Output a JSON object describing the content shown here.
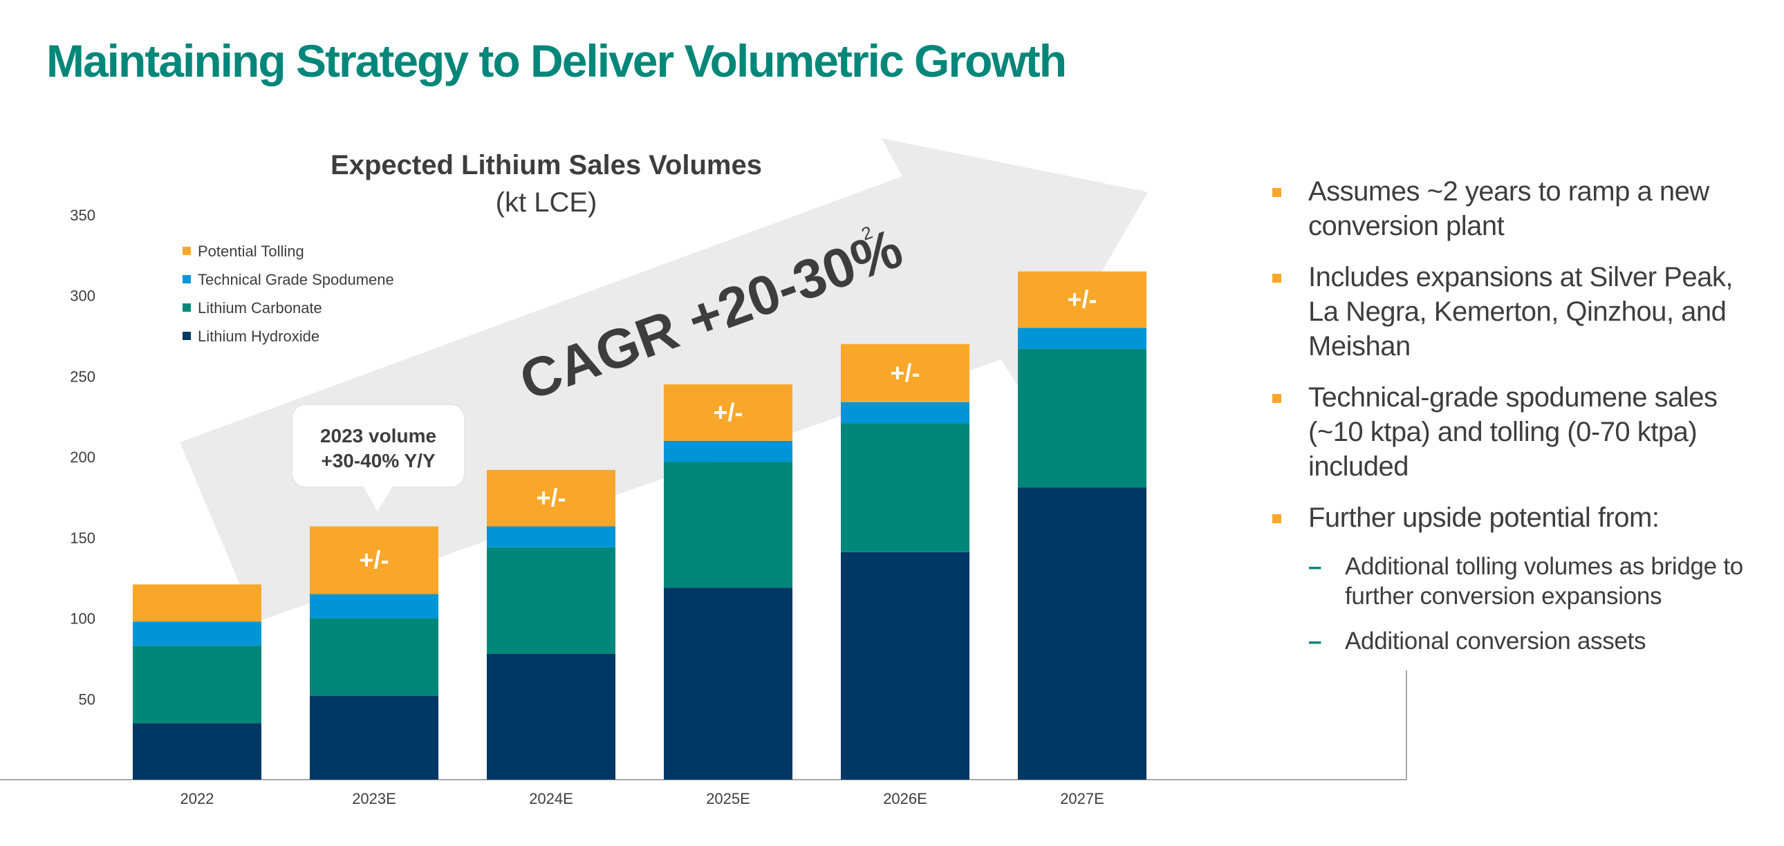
{
  "page": {
    "title": "Maintaining Strategy to Deliver Volumetric Growth"
  },
  "annotations": {
    "callout_line1": "2023 volume",
    "callout_line2": "+30-40% Y/Y",
    "cagr_text": "CAGR +20-30%",
    "cagr_footnote": "2",
    "range_label": "+/-"
  },
  "colors": {
    "title": "#00877a",
    "lithium_hydroxide": "#003764",
    "lithium_carbonate": "#00877a",
    "technical_grade_spodumene": "#0095d6",
    "potential_tolling": "#f9a72b",
    "arrow": "#ebebeb",
    "bullet_marker": "#f9a72b",
    "dash": "#00877a"
  },
  "chart_data": {
    "type": "bar",
    "stacked": true,
    "title": "Expected Lithium Sales Volumes",
    "subtitle": "(kt LCE)",
    "categories": [
      "2022",
      "2023E",
      "2024E",
      "2025E",
      "2026E",
      "2027E"
    ],
    "series": [
      {
        "name": "Lithium Hydroxide",
        "values": [
          35,
          52,
          78,
          119,
          141,
          181
        ]
      },
      {
        "name": "Lithium Carbonate",
        "values": [
          48,
          48,
          66,
          78,
          80,
          86
        ]
      },
      {
        "name": "Technical Grade Spodumene",
        "values": [
          15,
          15,
          13,
          13,
          13,
          13
        ]
      },
      {
        "name": "Potential Tolling",
        "values": [
          23,
          42,
          35,
          35,
          36,
          35
        ]
      }
    ],
    "range_label_categories": [
      "2023E",
      "2024E",
      "2025E",
      "2026E",
      "2027E"
    ],
    "yticks": [
      50,
      100,
      150,
      200,
      250,
      300,
      350
    ],
    "ylim": [
      0,
      350
    ],
    "grid": false,
    "legend_position": "top-left"
  },
  "bullets": [
    {
      "text": "Assumes ~2 years to ramp a new conversion plant"
    },
    {
      "text": "Includes expansions at Silver Peak, La Negra, Kemerton, Qinzhou, and Meishan"
    },
    {
      "text": "Technical-grade spodumene sales (~10 ktpa) and tolling (0-70 ktpa) included"
    },
    {
      "text": "Further upside potential from:"
    }
  ],
  "sub_bullets": [
    {
      "text": "Additional tolling volumes as bridge to further conversion expansions"
    },
    {
      "text": "Additional conversion assets"
    }
  ]
}
